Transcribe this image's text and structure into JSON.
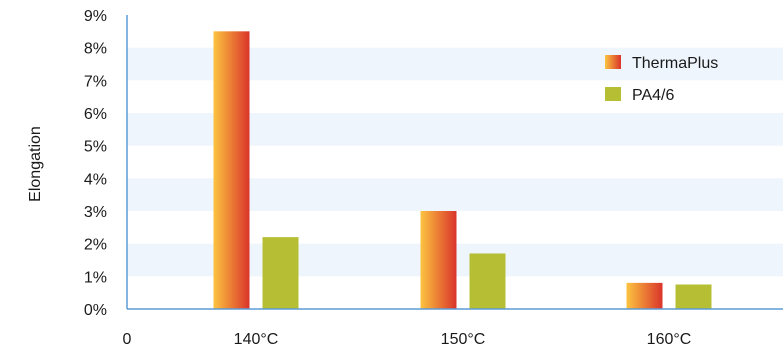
{
  "chart_data": {
    "type": "bar",
    "title": "",
    "xlabel": "",
    "ylabel": "Elongation",
    "x_origin_label": "0",
    "categories": [
      "140°C",
      "150°C",
      "160°C"
    ],
    "series": [
      {
        "name": "ThermaPlus",
        "values": [
          8.5,
          3.0,
          0.8
        ],
        "color": "#e8552f",
        "gradient": [
          "#fcc440",
          "#d9342a"
        ]
      },
      {
        "name": "PA4/6",
        "values": [
          2.2,
          1.7,
          0.75
        ],
        "color": "#b6bf34"
      }
    ],
    "ylim": [
      0,
      9
    ],
    "yticks": [
      "0%",
      "1%",
      "2%",
      "3%",
      "4%",
      "5%",
      "6%",
      "7%",
      "8%",
      "9%"
    ],
    "grid": "alternating horizontal bands",
    "band_color": "#eef5fc",
    "axis_color": "#5b9bd5",
    "legend_position": "top-right"
  }
}
